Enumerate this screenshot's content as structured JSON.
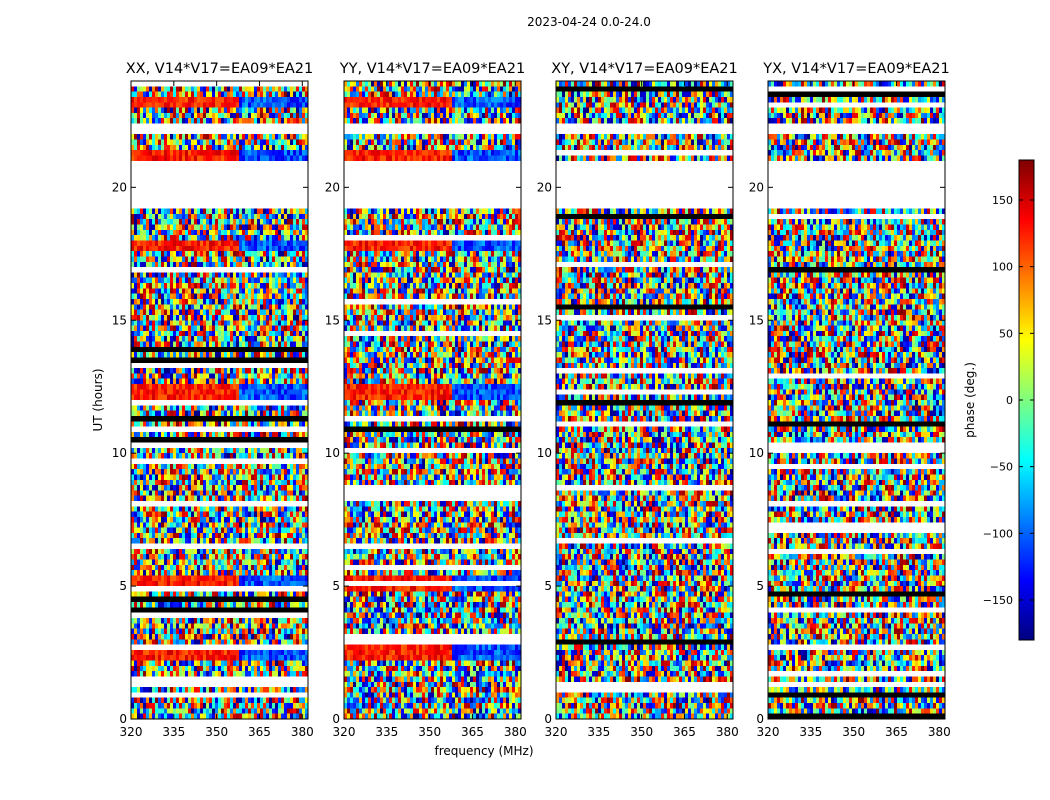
{
  "figure_title": "2023-04-24 0.0-24.0",
  "chart_data": {
    "type": "heatmap",
    "suptitle": "2023-04-24 0.0-24.0",
    "xlabel": "frequency (MHz)",
    "ylabel": "UT (hours)",
    "xlim": [
      320,
      382
    ],
    "ylim": [
      0,
      24
    ],
    "xticks": [
      320,
      335,
      350,
      365,
      380
    ],
    "yticks": [
      0,
      5,
      10,
      15,
      20
    ],
    "colorbar": {
      "label": "phase (deg.)",
      "range": [
        -180,
        180
      ],
      "ticks": [
        150,
        100,
        50,
        0,
        -50,
        -100,
        -150
      ],
      "colormap": "jet",
      "colors": [
        "#00007f",
        "#0000ff",
        "#007fff",
        "#00ffff",
        "#7fff7f",
        "#ffff00",
        "#ff7f00",
        "#ff0000",
        "#7f0000"
      ]
    },
    "panels": [
      {
        "title": "XX, V14*V17=EA09*EA21",
        "polarization": "XX",
        "baseline": "V14*V17=EA09*EA21"
      },
      {
        "title": "YY, V14*V17=EA09*EA21",
        "polarization": "YY",
        "baseline": "V14*V17=EA09*EA21"
      },
      {
        "title": "XY, V14*V17=EA09*EA21",
        "polarization": "XY",
        "baseline": "V14*V17=EA09*EA21"
      },
      {
        "title": "YX, V14*V17=EA09*EA21",
        "polarization": "YX",
        "baseline": "V14*V17=EA09*EA21"
      }
    ],
    "flagged_ut_ranges_hours": [
      [
        19.3,
        20.9
      ],
      [
        22.1,
        22.3
      ]
    ],
    "coherent_bands_ut_hours": [
      5.1,
      2.5,
      12.3,
      21.1,
      23.2,
      17.8
    ]
  }
}
